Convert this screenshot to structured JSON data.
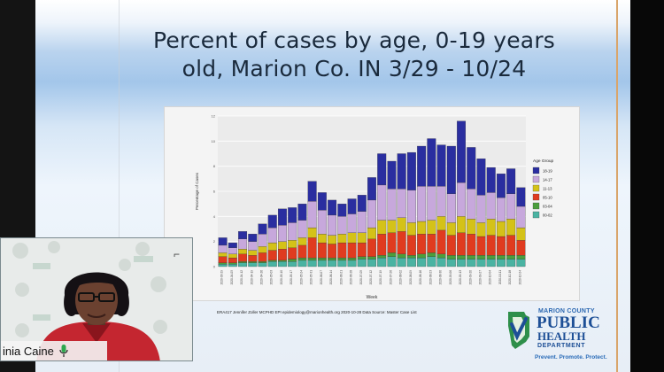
{
  "slide": {
    "title_line1": "Percent of cases by age, 0-19 years",
    "title_line2": "old, Marion Co. IN 3/29 - 10/24",
    "source_text": "ERA417 Jennifer Zoller MCPHD EPI epidemiology@marionhealth.org 2020-10-28 Data Source: Master Case List"
  },
  "chart_data": {
    "type": "bar",
    "stacked": true,
    "title": "",
    "xlabel": "Week",
    "ylabel": "Percentage of Cases",
    "ylim": [
      0,
      12
    ],
    "categories": [
      "3/29",
      "4/5",
      "4/12",
      "4/19",
      "4/26",
      "5/3",
      "5/10",
      "5/17",
      "5/24",
      "5/31",
      "6/7",
      "6/14",
      "6/21",
      "6/28",
      "7/5",
      "7/12",
      "7/19",
      "7/26",
      "8/2",
      "8/9",
      "8/16",
      "8/23",
      "8/30",
      "9/6",
      "9/13",
      "9/20",
      "9/27",
      "10/4",
      "10/11",
      "10/18",
      "10/24"
    ],
    "week_labels": [
      "2020-03-29",
      "2020-04-05",
      "2020-04-12",
      "2020-04-19",
      "2020-04-26",
      "2020-05-03",
      "2020-05-10",
      "2020-05-17",
      "2020-05-24",
      "2020-05-31",
      "2020-06-07",
      "2020-06-14",
      "2020-06-21",
      "2020-06-28",
      "2020-07-05",
      "2020-07-12",
      "2020-07-19",
      "2020-07-26",
      "2020-08-02",
      "2020-08-09",
      "2020-08-16",
      "2020-08-23",
      "2020-08-30",
      "2020-09-06",
      "2020-09-13",
      "2020-09-20",
      "2020-09-27",
      "2020-10-04",
      "2020-10-11",
      "2020-10-18",
      "2020-10-24"
    ],
    "legend_title": "Age Group",
    "legend_position": "right",
    "series": [
      {
        "name": "00-02",
        "color": "#4ab3a2",
        "values": [
          0.2,
          0.2,
          0.3,
          0.3,
          0.3,
          0.4,
          0.4,
          0.4,
          0.5,
          0.5,
          0.5,
          0.5,
          0.5,
          0.5,
          0.6,
          0.6,
          0.7,
          0.8,
          0.7,
          0.7,
          0.7,
          0.8,
          0.7,
          0.6,
          0.6,
          0.6,
          0.6,
          0.6,
          0.6,
          0.6,
          0.6
        ]
      },
      {
        "name": "03-04",
        "color": "#4b9e3c",
        "values": [
          0.1,
          0.1,
          0.1,
          0.1,
          0.1,
          0.1,
          0.1,
          0.2,
          0.2,
          0.2,
          0.2,
          0.2,
          0.2,
          0.2,
          0.2,
          0.2,
          0.2,
          0.3,
          0.3,
          0.2,
          0.3,
          0.3,
          0.3,
          0.3,
          0.3,
          0.3,
          0.3,
          0.3,
          0.3,
          0.3,
          0.3
        ]
      },
      {
        "name": "05-10",
        "color": "#e03b1f",
        "values": [
          0.5,
          0.4,
          0.6,
          0.5,
          0.7,
          0.8,
          0.9,
          0.9,
          1.0,
          1.6,
          1.2,
          1.1,
          1.2,
          1.2,
          1.1,
          1.4,
          1.7,
          1.6,
          1.8,
          1.6,
          1.6,
          1.5,
          1.9,
          1.6,
          1.8,
          1.7,
          1.5,
          1.6,
          1.5,
          1.6,
          1.2
        ]
      },
      {
        "name": "11-13",
        "color": "#d4c218",
        "values": [
          0.3,
          0.3,
          0.4,
          0.4,
          0.5,
          0.6,
          0.6,
          0.6,
          0.6,
          0.8,
          0.7,
          0.7,
          0.7,
          0.8,
          0.8,
          0.9,
          1.1,
          1.0,
          1.1,
          1.0,
          1.0,
          1.1,
          1.1,
          1.0,
          1.3,
          1.2,
          1.1,
          1.3,
          1.2,
          1.3,
          1.0
        ]
      },
      {
        "name": "14-17",
        "color": "#c7a8dc",
        "values": [
          0.6,
          0.5,
          0.8,
          0.7,
          1.0,
          1.2,
          1.3,
          1.4,
          1.4,
          2.1,
          1.9,
          1.6,
          1.4,
          1.5,
          1.7,
          2.2,
          2.8,
          2.5,
          2.3,
          2.6,
          2.8,
          2.7,
          2.4,
          2.3,
          2.7,
          2.4,
          2.2,
          2.1,
          1.9,
          2.0,
          1.7
        ]
      },
      {
        "name": "18-19",
        "color": "#2a2ea0",
        "values": [
          0.6,
          0.4,
          0.6,
          0.6,
          0.8,
          1.0,
          1.3,
          1.2,
          1.3,
          1.6,
          1.4,
          1.2,
          1.0,
          1.2,
          1.3,
          1.8,
          2.5,
          2.2,
          2.8,
          3.0,
          3.2,
          3.8,
          3.3,
          3.8,
          4.9,
          3.3,
          2.9,
          2.0,
          1.9,
          2.0,
          1.5
        ]
      }
    ]
  },
  "logo": {
    "county": "MARION COUNTY",
    "public": "PUBLIC",
    "health": "HEALTH",
    "department": "DEPARTMENT",
    "tagline": "Prevent. Promote. Protect."
  },
  "participant": {
    "name": "inia Caine",
    "mic_icon": "mic-icon"
  }
}
